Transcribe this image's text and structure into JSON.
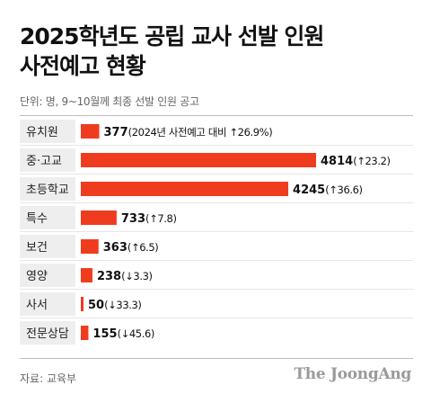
{
  "title_lines": [
    "2025학년도 공립 교사 선발 인원",
    "사전예고 현황"
  ],
  "subtitle": "단위: 명, 9~10월께 최종 선발 인원 공고",
  "source": "자료: 교육부",
  "brand": "The JoongAng",
  "colors": {
    "bar": "#f03c1e",
    "label_bg": "#eeeeee",
    "divider": "#bdbdbd"
  },
  "chart_data": {
    "type": "bar",
    "orientation": "horizontal",
    "title": "2025학년도 공립 교사 선발 인원 사전예고 현황",
    "unit": "명",
    "xlim": [
      0,
      4814
    ],
    "categories": [
      "유치원",
      "중·고교",
      "초등학교",
      "특수",
      "보건",
      "영양",
      "사서",
      "전문상담"
    ],
    "values": [
      377,
      4814,
      4245,
      733,
      363,
      238,
      50,
      155
    ],
    "value_labels": [
      "377",
      "4814",
      "4245",
      "733",
      "363",
      "238",
      "50",
      "155"
    ],
    "annotations": [
      "(2024년 사전예고 대비 ↑26.9%)",
      "(↑23.2)",
      "(↑36.6)",
      "(↑7.8)",
      "(↑6.5)",
      "(↓3.3)",
      "(↓33.3)",
      "(↓45.6)"
    ]
  }
}
